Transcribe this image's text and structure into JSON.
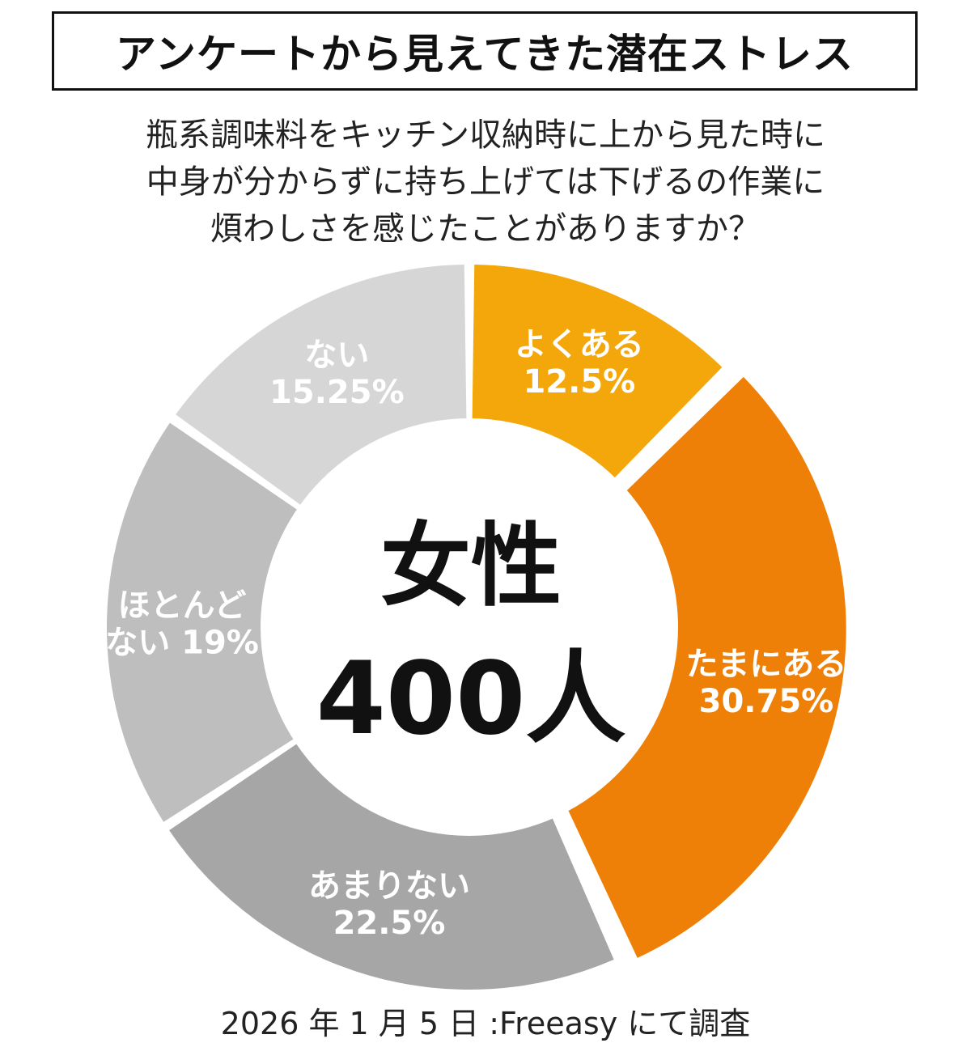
{
  "title": "アンケートから見えてきた潜在ストレス",
  "question": [
    "瓶系調味料をキッチン収納時に上から見た時に",
    "中身が分からずに持ち上げては下げるの作業に",
    "煩わしさを感じたことがありますか？"
  ],
  "footer": "2026 年 1 月 5 日 :Freeasy にて調査",
  "center": {
    "line1": "女性",
    "line2": "400人"
  },
  "chart_data": {
    "type": "pie",
    "variant": "donut",
    "unit": "%",
    "slices": [
      {
        "label_lines": [
          "よくある"
        ],
        "value_text": "12.5%",
        "value": 12.5,
        "color": "#F3A70B",
        "label_color": "#ffffff"
      },
      {
        "label_lines": [
          "たまにある"
        ],
        "value_text": "30.75%",
        "value": 30.75,
        "color": "#EE8007",
        "label_color": "#ffffff"
      },
      {
        "label_lines": [
          "あまりない"
        ],
        "value_text": "22.5%",
        "value": 22.5,
        "color": "#A6A6A6",
        "label_color": "#ffffff"
      },
      {
        "label_lines": [
          "ほとんど",
          "ない"
        ],
        "value_text": "19%",
        "value": 19,
        "color": "#BEBEBE",
        "label_color": "#ffffff"
      },
      {
        "label_lines": [
          "ない"
        ],
        "value_text": "15.25%",
        "value": 15.25,
        "color": "#D6D6D6",
        "label_color": "#ffffff"
      }
    ]
  }
}
